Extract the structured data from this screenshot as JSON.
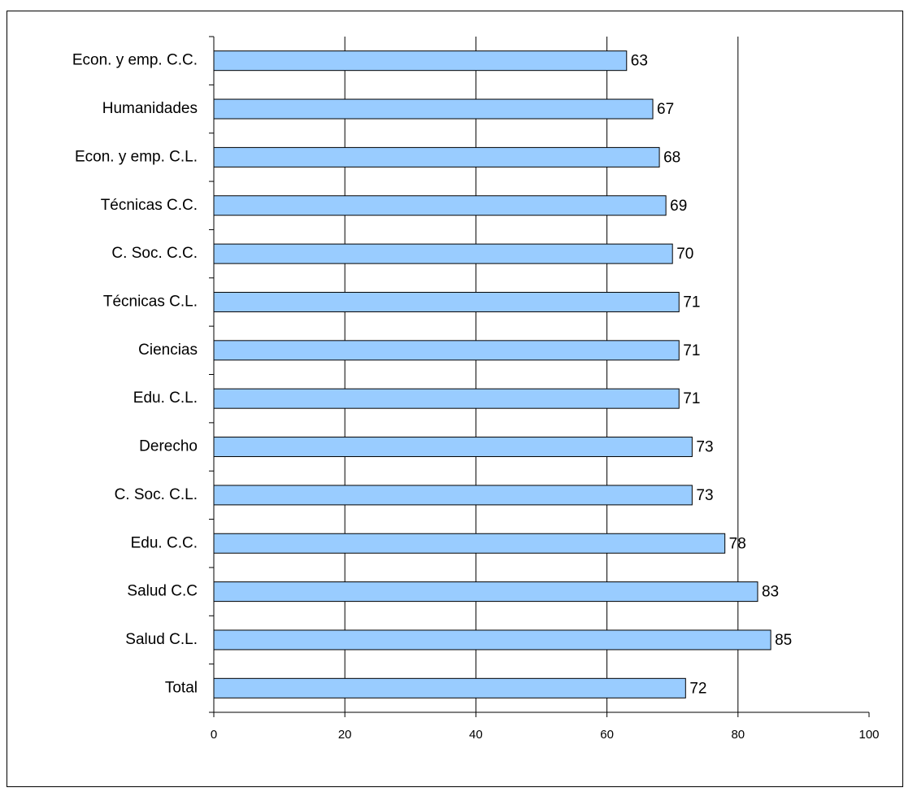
{
  "chart_data": {
    "type": "hbar",
    "categories": [
      "Econ. y emp. C.C.",
      "Humanidades",
      "Econ. y emp. C.L.",
      "Técnicas C.C.",
      "C. Soc. C.C.",
      "Técnicas C.L.",
      "Ciencias",
      "Edu. C.L.",
      "Derecho",
      "C. Soc. C.L.",
      "Edu. C.C.",
      "Salud C.C",
      "Salud C.L.",
      "Total"
    ],
    "values": [
      63,
      67,
      68,
      69,
      70,
      71,
      71,
      71,
      73,
      73,
      78,
      83,
      85,
      72
    ],
    "color": "#99ccff",
    "xlim": [
      0,
      100
    ],
    "xticks": [
      0,
      20,
      40,
      60,
      80,
      100
    ],
    "grid": true
  }
}
